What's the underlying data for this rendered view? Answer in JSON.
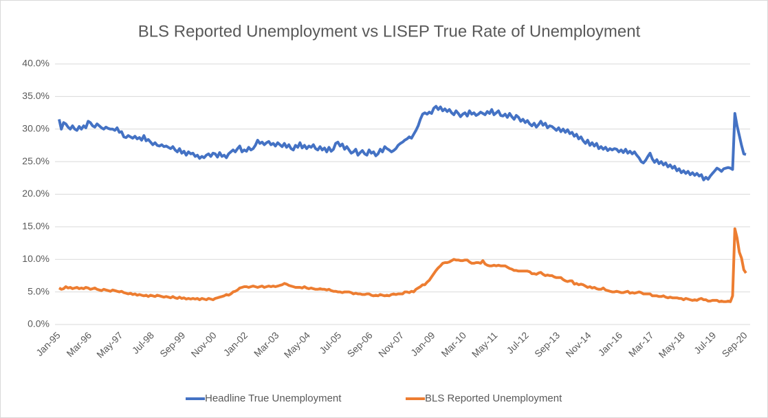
{
  "chart_data": {
    "type": "line",
    "title": "BLS Reported Unemployment vs LISEP True Rate of Unemployment",
    "categories": [
      "Jan-95",
      null,
      null,
      null,
      null,
      null,
      null,
      null,
      null,
      null,
      null,
      null,
      null,
      null,
      "Mar-96",
      null,
      null,
      null,
      null,
      null,
      null,
      null,
      null,
      null,
      null,
      null,
      null,
      null,
      "May-97",
      null,
      null,
      null,
      null,
      null,
      null,
      null,
      null,
      null,
      null,
      null,
      null,
      null,
      "Jul-98",
      null,
      null,
      null,
      null,
      null,
      null,
      null,
      null,
      null,
      null,
      null,
      null,
      null,
      "Sep-99",
      null,
      null,
      null,
      null,
      null,
      null,
      null,
      null,
      null,
      null,
      null,
      null,
      null,
      "Nov-00",
      null,
      null,
      null,
      null,
      null,
      null,
      null,
      null,
      null,
      null,
      null,
      null,
      null,
      "Jan-02",
      null,
      null,
      null,
      null,
      null,
      null,
      null,
      null,
      null,
      null,
      null,
      null,
      null,
      "Mar-03",
      null,
      null,
      null,
      null,
      null,
      null,
      null,
      null,
      null,
      null,
      null,
      null,
      null,
      "May-04",
      null,
      null,
      null,
      null,
      null,
      null,
      null,
      null,
      null,
      null,
      null,
      null,
      null,
      "Jul-05",
      null,
      null,
      null,
      null,
      null,
      null,
      null,
      null,
      null,
      null,
      null,
      null,
      null,
      "Sep-06",
      null,
      null,
      null,
      null,
      null,
      null,
      null,
      null,
      null,
      null,
      null,
      null,
      null,
      "Nov-07",
      null,
      null,
      null,
      null,
      null,
      null,
      null,
      null,
      null,
      null,
      null,
      null,
      null,
      "Jan-09",
      null,
      null,
      null,
      null,
      null,
      null,
      null,
      null,
      null,
      null,
      null,
      null,
      null,
      "Mar-10",
      null,
      null,
      null,
      null,
      null,
      null,
      null,
      null,
      null,
      null,
      null,
      null,
      null,
      "May-11",
      null,
      null,
      null,
      null,
      null,
      null,
      null,
      null,
      null,
      null,
      null,
      null,
      null,
      "Jul-12",
      null,
      null,
      null,
      null,
      null,
      null,
      null,
      null,
      null,
      null,
      null,
      null,
      null,
      "Sep-13",
      null,
      null,
      null,
      null,
      null,
      null,
      null,
      null,
      null,
      null,
      null,
      null,
      null,
      "Nov-14",
      null,
      null,
      null,
      null,
      null,
      null,
      null,
      null,
      null,
      null,
      null,
      null,
      null,
      "Jan-16",
      null,
      null,
      null,
      null,
      null,
      null,
      null,
      null,
      null,
      null,
      null,
      null,
      null,
      "Mar-17",
      null,
      null,
      null,
      null,
      null,
      null,
      null,
      null,
      null,
      null,
      null,
      null,
      null,
      "May-18",
      null,
      null,
      null,
      null,
      null,
      null,
      null,
      null,
      null,
      null,
      null,
      null,
      null,
      "Jul-19",
      null,
      null,
      null,
      null,
      null,
      null,
      null,
      null,
      null,
      null,
      null,
      null,
      null,
      "Sep-20"
    ],
    "series": [
      {
        "name": "Headline True Unemployment",
        "color": "#4472c4",
        "values": [
          31.5,
          30,
          31,
          30.8,
          30.3,
          30,
          30.5,
          30,
          29.8,
          30.4,
          30,
          30.5,
          30.2,
          31.2,
          31,
          30.5,
          30.3,
          30.8,
          30.5,
          30.2,
          30,
          30.3,
          30.1,
          30,
          30,
          29.8,
          30.2,
          29.5,
          29.6,
          28.8,
          28.7,
          29,
          28.8,
          28.6,
          28.9,
          28.5,
          28.7,
          28.3,
          29,
          28.2,
          28.4,
          28,
          27.6,
          27.9,
          27.5,
          27.4,
          27.6,
          27.3,
          27.4,
          27.2,
          27,
          27.3,
          26.8,
          26.5,
          27,
          26.3,
          26.6,
          26,
          26.5,
          26.2,
          26.3,
          25.8,
          26,
          25.5,
          25.8,
          25.6,
          26,
          26.2,
          25.8,
          26.3,
          26.2,
          25.7,
          26.4,
          25.8,
          26,
          25.6,
          26.2,
          26.5,
          26.8,
          26.5,
          27,
          27.4,
          26.5,
          26.8,
          26.6,
          27.2,
          26.8,
          27,
          27.5,
          28.3,
          27.8,
          28,
          27.6,
          27.9,
          28.1,
          27.6,
          27.8,
          27.4,
          27.9,
          27.6,
          27.3,
          27.8,
          27.2,
          27.6,
          27,
          26.8,
          27.5,
          27.2,
          27.9,
          27.1,
          27.5,
          27,
          27.4,
          27.2,
          27.6,
          27,
          26.8,
          27.3,
          26.8,
          27.1,
          26.5,
          27.2,
          26.6,
          26.9,
          27.8,
          28,
          27.4,
          27.7,
          26.9,
          27.3,
          26.8,
          26.3,
          26.5,
          26.9,
          26,
          26.4,
          26.7,
          26.2,
          26,
          26.8,
          26.3,
          26.5,
          25.9,
          26.2,
          26.9,
          26.5,
          27.3,
          27,
          26.8,
          26.5,
          26.7,
          27,
          27.5,
          27.8,
          28,
          28.3,
          28.5,
          28.8,
          28.6,
          29.2,
          29.8,
          30.5,
          31.5,
          32.3,
          32.5,
          32.3,
          32.6,
          32.4,
          33.2,
          33.5,
          33,
          33.4,
          32.8,
          33.1,
          32.7,
          33,
          32.5,
          32.2,
          32.8,
          32.4,
          31.9,
          32.3,
          32.5,
          32,
          32.8,
          32.3,
          32.5,
          32.1,
          32.3,
          32.6,
          32.4,
          32.2,
          32.7,
          32.4,
          33,
          32.2,
          32.5,
          32.8,
          32.1,
          32,
          32.3,
          31.8,
          32.4,
          31.9,
          31.5,
          32.1,
          31.8,
          31.2,
          31.5,
          31,
          31.3,
          30.8,
          30.5,
          30.9,
          30.3,
          30.7,
          31.2,
          30.6,
          30.9,
          30.2,
          30.5,
          30.4,
          30.1,
          29.8,
          30.2,
          29.6,
          30,
          29.5,
          29.9,
          29.3,
          29.5,
          28.9,
          29.2,
          28.5,
          28.8,
          28.2,
          27.8,
          28.3,
          27.5,
          27.9,
          27.4,
          27.8,
          27,
          27.3,
          26.9,
          27.2,
          26.7,
          27,
          26.8,
          27,
          26.9,
          26.5,
          26.8,
          26.4,
          26.9,
          26.3,
          26.6,
          26.2,
          26.5,
          26,
          25.6,
          25,
          24.8,
          25.2,
          25.8,
          26.3,
          25.4,
          24.9,
          25.3,
          24.7,
          25,
          24.5,
          24.8,
          24.2,
          24.5,
          24,
          24.3,
          23.6,
          23.9,
          23.3,
          23.6,
          23.2,
          23.5,
          23,
          23.3,
          22.9,
          23.2,
          22.8,
          23,
          22.2,
          22.6,
          22.3,
          22.8,
          23.2,
          23.6,
          24,
          23.8,
          23.5,
          23.9,
          24,
          24.1,
          24,
          23.8,
          32.4,
          30.5,
          29,
          27.5,
          26.2,
          26.1
        ]
      },
      {
        "name": "BLS Reported Unemployment",
        "color": "#ed7d31",
        "values": [
          5.6,
          5.4,
          5.5,
          5.8,
          5.6,
          5.7,
          5.5,
          5.6,
          5.7,
          5.5,
          5.6,
          5.5,
          5.7,
          5.6,
          5.4,
          5.5,
          5.6,
          5.4,
          5.3,
          5.2,
          5.4,
          5.3,
          5.2,
          5.1,
          5.3,
          5.2,
          5.1,
          5,
          5.1,
          4.9,
          4.8,
          4.7,
          4.8,
          4.6,
          4.7,
          4.5,
          4.6,
          4.5,
          4.4,
          4.5,
          4.3,
          4.5,
          4.4,
          4.3,
          4.5,
          4.4,
          4.3,
          4.2,
          4.3,
          4.2,
          4.1,
          4.3,
          4.1,
          4,
          4.2,
          4,
          4.1,
          3.9,
          4,
          3.9,
          4,
          3.9,
          4,
          3.8,
          4,
          3.9,
          3.8,
          4,
          3.9,
          3.8,
          4,
          4.1,
          4.2,
          4.3,
          4.4,
          4.6,
          4.5,
          4.7,
          5,
          5.1,
          5.3,
          5.6,
          5.7,
          5.8,
          5.8,
          5.7,
          5.8,
          5.9,
          5.8,
          5.7,
          5.8,
          5.9,
          5.7,
          5.8,
          5.9,
          5.8,
          5.9,
          5.8,
          5.9,
          6,
          6.1,
          6.3,
          6.2,
          6,
          5.9,
          5.8,
          5.7,
          5.7,
          5.7,
          5.6,
          5.8,
          5.6,
          5.5,
          5.6,
          5.5,
          5.4,
          5.4,
          5.5,
          5.4,
          5.4,
          5.3,
          5.4,
          5.2,
          5.1,
          5.1,
          5,
          5,
          4.9,
          5,
          5,
          5,
          4.9,
          4.7,
          4.8,
          4.7,
          4.7,
          4.6,
          4.6,
          4.7,
          4.7,
          4.5,
          4.4,
          4.5,
          4.4,
          4.6,
          4.5,
          4.4,
          4.5,
          4.4,
          4.6,
          4.7,
          4.6,
          4.7,
          4.7,
          4.7,
          5,
          5,
          4.9,
          5.1,
          5,
          5.4,
          5.6,
          5.8,
          6.1,
          6.1,
          6.5,
          6.8,
          7.3,
          7.8,
          8.3,
          8.7,
          9,
          9.4,
          9.5,
          9.5,
          9.6,
          9.8,
          10,
          9.9,
          9.9,
          9.8,
          9.8,
          9.9,
          9.9,
          9.6,
          9.4,
          9.4,
          9.5,
          9.5,
          9.4,
          9.8,
          9.3,
          9.1,
          9,
          9,
          9.1,
          9,
          9.1,
          9,
          9,
          9,
          8.8,
          8.6,
          8.5,
          8.3,
          8.3,
          8.2,
          8.2,
          8.2,
          8.2,
          8.2,
          8.1,
          7.8,
          7.8,
          7.7,
          7.9,
          8,
          7.7,
          7.5,
          7.6,
          7.5,
          7.5,
          7.3,
          7.2,
          7.2,
          7.2,
          6.9,
          6.7,
          6.6,
          6.7,
          6.7,
          6.2,
          6.3,
          6.1,
          6.2,
          6.1,
          5.9,
          5.7,
          5.8,
          5.6,
          5.7,
          5.5,
          5.4,
          5.4,
          5.6,
          5.3,
          5.2,
          5.1,
          5,
          5,
          5.1,
          5,
          4.9,
          4.9,
          5,
          5.1,
          4.8,
          4.9,
          4.8,
          4.9,
          5,
          4.9,
          4.7,
          4.7,
          4.7,
          4.7,
          4.4,
          4.4,
          4.4,
          4.3,
          4.3,
          4.4,
          4.2,
          4.1,
          4.2,
          4.1,
          4.1,
          4.1,
          4,
          4,
          3.8,
          4,
          3.9,
          3.8,
          3.7,
          3.8,
          3.7,
          3.9,
          4,
          3.8,
          3.8,
          3.6,
          3.6,
          3.7,
          3.7,
          3.7,
          3.5,
          3.6,
          3.5,
          3.5,
          3.6,
          3.5,
          4.4,
          14.7,
          13.3,
          11.1,
          10.2,
          8.4,
          7.9
        ]
      }
    ],
    "ylim": [
      0,
      40
    ],
    "yticks": [
      {
        "value": 0,
        "label": "0.0%"
      },
      {
        "value": 5,
        "label": "5.0%"
      },
      {
        "value": 10,
        "label": "10.0%"
      },
      {
        "value": 15,
        "label": "15.0%"
      },
      {
        "value": 20,
        "label": "20.0%"
      },
      {
        "value": 25,
        "label": "25.0%"
      },
      {
        "value": 30,
        "label": "30.0%"
      },
      {
        "value": 35,
        "label": "35.0%"
      },
      {
        "value": 40,
        "label": "40.0%"
      }
    ],
    "grid": true,
    "legend": "bottom"
  }
}
